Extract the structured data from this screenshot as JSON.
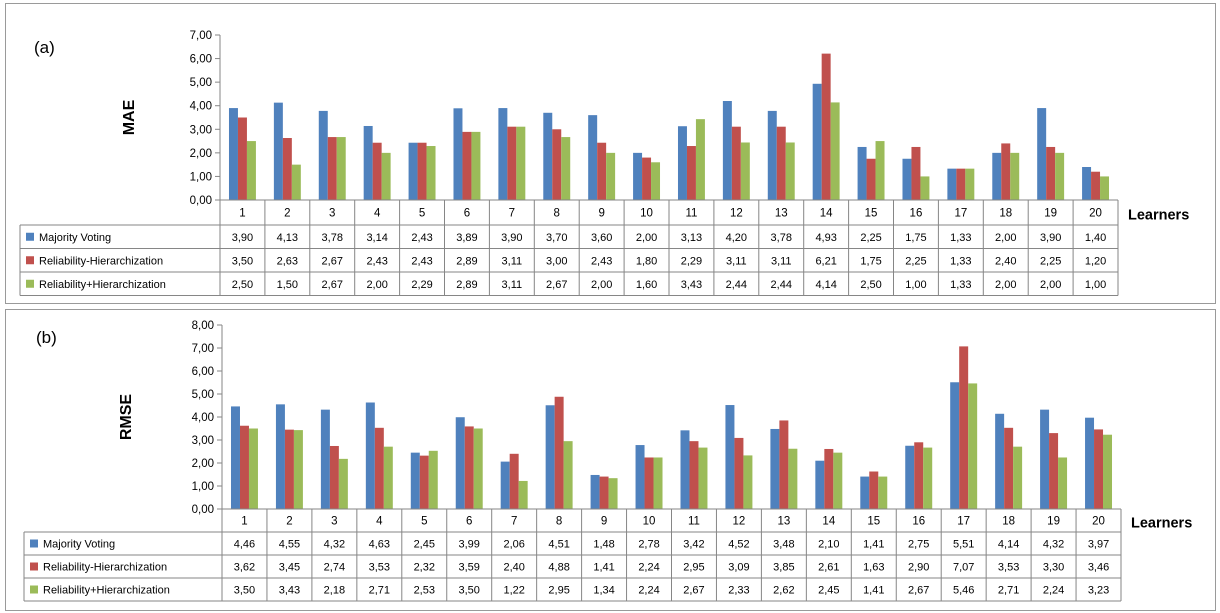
{
  "chart_data": [
    {
      "type": "bar",
      "panel_label": "(a)",
      "ylabel": "MAE",
      "xlabel": "Learners",
      "ylim": [
        0,
        7
      ],
      "yticks": [
        "0,00",
        "1,00",
        "2,00",
        "3,00",
        "4,00",
        "5,00",
        "6,00",
        "7,00"
      ],
      "grid": false,
      "legend": "data-table",
      "categories": [
        "1",
        "2",
        "3",
        "4",
        "5",
        "6",
        "7",
        "8",
        "9",
        "10",
        "11",
        "12",
        "13",
        "14",
        "15",
        "16",
        "17",
        "18",
        "19",
        "20"
      ],
      "series": [
        {
          "name": "Majority Voting",
          "color": "#4f81bd",
          "values": [
            3.9,
            4.13,
            3.78,
            3.14,
            2.43,
            3.89,
            3.9,
            3.7,
            3.6,
            2.0,
            3.13,
            4.2,
            3.78,
            4.93,
            2.25,
            1.75,
            1.33,
            2.0,
            3.9,
            1.4
          ],
          "labels": [
            "3,90",
            "4,13",
            "3,78",
            "3,14",
            "2,43",
            "3,89",
            "3,90",
            "3,70",
            "3,60",
            "2,00",
            "3,13",
            "4,20",
            "3,78",
            "4,93",
            "2,25",
            "1,75",
            "1,33",
            "2,00",
            "3,90",
            "1,40"
          ]
        },
        {
          "name": "Reliability-Hierarchization",
          "color": "#c0504d",
          "values": [
            3.5,
            2.63,
            2.67,
            2.43,
            2.43,
            2.89,
            3.11,
            3.0,
            2.43,
            1.8,
            2.29,
            3.11,
            3.11,
            6.21,
            1.75,
            2.25,
            1.33,
            2.4,
            2.25,
            1.2
          ],
          "labels": [
            "3,50",
            "2,63",
            "2,67",
            "2,43",
            "2,43",
            "2,89",
            "3,11",
            "3,00",
            "2,43",
            "1,80",
            "2,29",
            "3,11",
            "3,11",
            "6,21",
            "1,75",
            "2,25",
            "1,33",
            "2,40",
            "2,25",
            "1,20"
          ]
        },
        {
          "name": "Reliability+Hierarchization",
          "color": "#9bbb59",
          "values": [
            2.5,
            1.5,
            2.67,
            2.0,
            2.29,
            2.89,
            3.11,
            2.67,
            2.0,
            1.6,
            3.43,
            2.44,
            2.44,
            4.14,
            2.5,
            1.0,
            1.33,
            2.0,
            2.0,
            1.0
          ],
          "labels": [
            "2,50",
            "1,50",
            "2,67",
            "2,00",
            "2,29",
            "2,89",
            "3,11",
            "2,67",
            "2,00",
            "1,60",
            "3,43",
            "2,44",
            "2,44",
            "4,14",
            "2,50",
            "1,00",
            "1,33",
            "2,00",
            "2,00",
            "1,00"
          ]
        }
      ]
    },
    {
      "type": "bar",
      "panel_label": "(b)",
      "ylabel": "RMSE",
      "xlabel": "Learners",
      "ylim": [
        0,
        8
      ],
      "yticks": [
        "0,00",
        "1,00",
        "2,00",
        "3,00",
        "4,00",
        "5,00",
        "6,00",
        "7,00",
        "8,00"
      ],
      "grid": false,
      "legend": "data-table",
      "categories": [
        "1",
        "2",
        "3",
        "4",
        "5",
        "6",
        "7",
        "8",
        "9",
        "10",
        "11",
        "12",
        "13",
        "14",
        "15",
        "16",
        "17",
        "18",
        "19",
        "20"
      ],
      "series": [
        {
          "name": "Majority Voting",
          "color": "#4f81bd",
          "values": [
            4.46,
            4.55,
            4.32,
            4.63,
            2.45,
            3.99,
            2.06,
            4.51,
            1.48,
            2.78,
            3.42,
            4.52,
            3.48,
            2.1,
            1.41,
            2.75,
            5.51,
            4.14,
            4.32,
            3.97
          ],
          "labels": [
            "4,46",
            "4,55",
            "4,32",
            "4,63",
            "2,45",
            "3,99",
            "2,06",
            "4,51",
            "1,48",
            "2,78",
            "3,42",
            "4,52",
            "3,48",
            "2,10",
            "1,41",
            "2,75",
            "5,51",
            "4,14",
            "4,32",
            "3,97"
          ]
        },
        {
          "name": "Reliability-Hierarchization",
          "color": "#c0504d",
          "values": [
            3.62,
            3.45,
            2.74,
            3.53,
            2.32,
            3.59,
            2.4,
            4.88,
            1.41,
            2.24,
            2.95,
            3.09,
            3.85,
            2.61,
            1.63,
            2.9,
            7.07,
            3.53,
            3.3,
            3.46
          ],
          "labels": [
            "3,62",
            "3,45",
            "2,74",
            "3,53",
            "2,32",
            "3,59",
            "2,40",
            "4,88",
            "1,41",
            "2,24",
            "2,95",
            "3,09",
            "3,85",
            "2,61",
            "1,63",
            "2,90",
            "7,07",
            "3,53",
            "3,30",
            "3,46"
          ]
        },
        {
          "name": "Reliability+Hierarchization",
          "color": "#9bbb59",
          "values": [
            3.5,
            3.43,
            2.18,
            2.71,
            2.53,
            3.5,
            1.22,
            2.95,
            1.34,
            2.24,
            2.67,
            2.33,
            2.62,
            2.45,
            1.41,
            2.67,
            5.46,
            2.71,
            2.24,
            3.23
          ],
          "labels": [
            "3,50",
            "3,43",
            "2,18",
            "2,71",
            "2,53",
            "3,50",
            "1,22",
            "2,95",
            "1,34",
            "2,24",
            "2,67",
            "2,33",
            "2,62",
            "2,45",
            "1,41",
            "2,67",
            "5,46",
            "2,71",
            "2,24",
            "3,23"
          ]
        }
      ]
    }
  ]
}
